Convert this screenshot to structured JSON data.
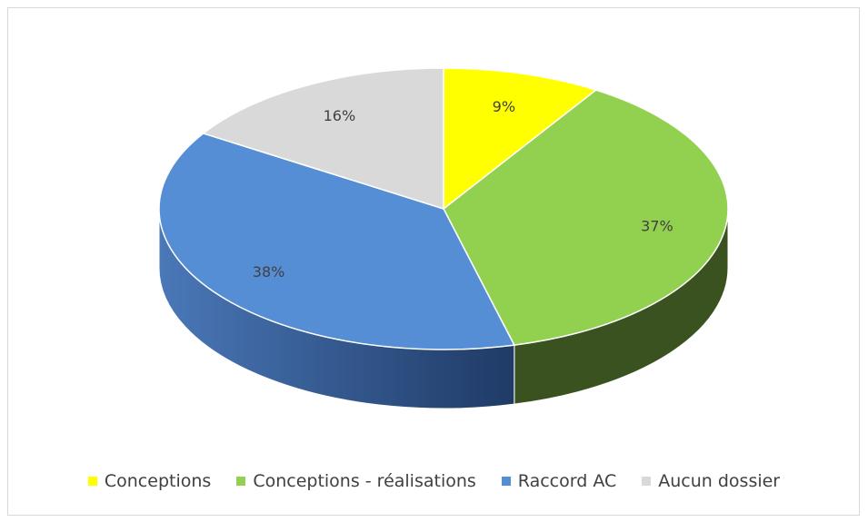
{
  "chart_data": {
    "type": "pie",
    "title": "",
    "three_d": true,
    "start_angle_deg": 0,
    "slices": [
      {
        "name": "Conceptions",
        "value": 9,
        "label": "9%",
        "color": "#ffff00",
        "side_color": "#8c8c00"
      },
      {
        "name": "Conceptions - réalisations",
        "value": 37,
        "label": "37%",
        "color": "#92d050",
        "side_color": "#3a5220"
      },
      {
        "name": "Raccord AC",
        "value": 38,
        "label": "38%",
        "color": "#558ed5",
        "side_color": "#2a4a78"
      },
      {
        "name": "Aucun dossier",
        "value": 16,
        "label": "16%",
        "color": "#d9d9d9",
        "side_color": "#8a8a8a"
      }
    ],
    "legend_position": "bottom"
  }
}
